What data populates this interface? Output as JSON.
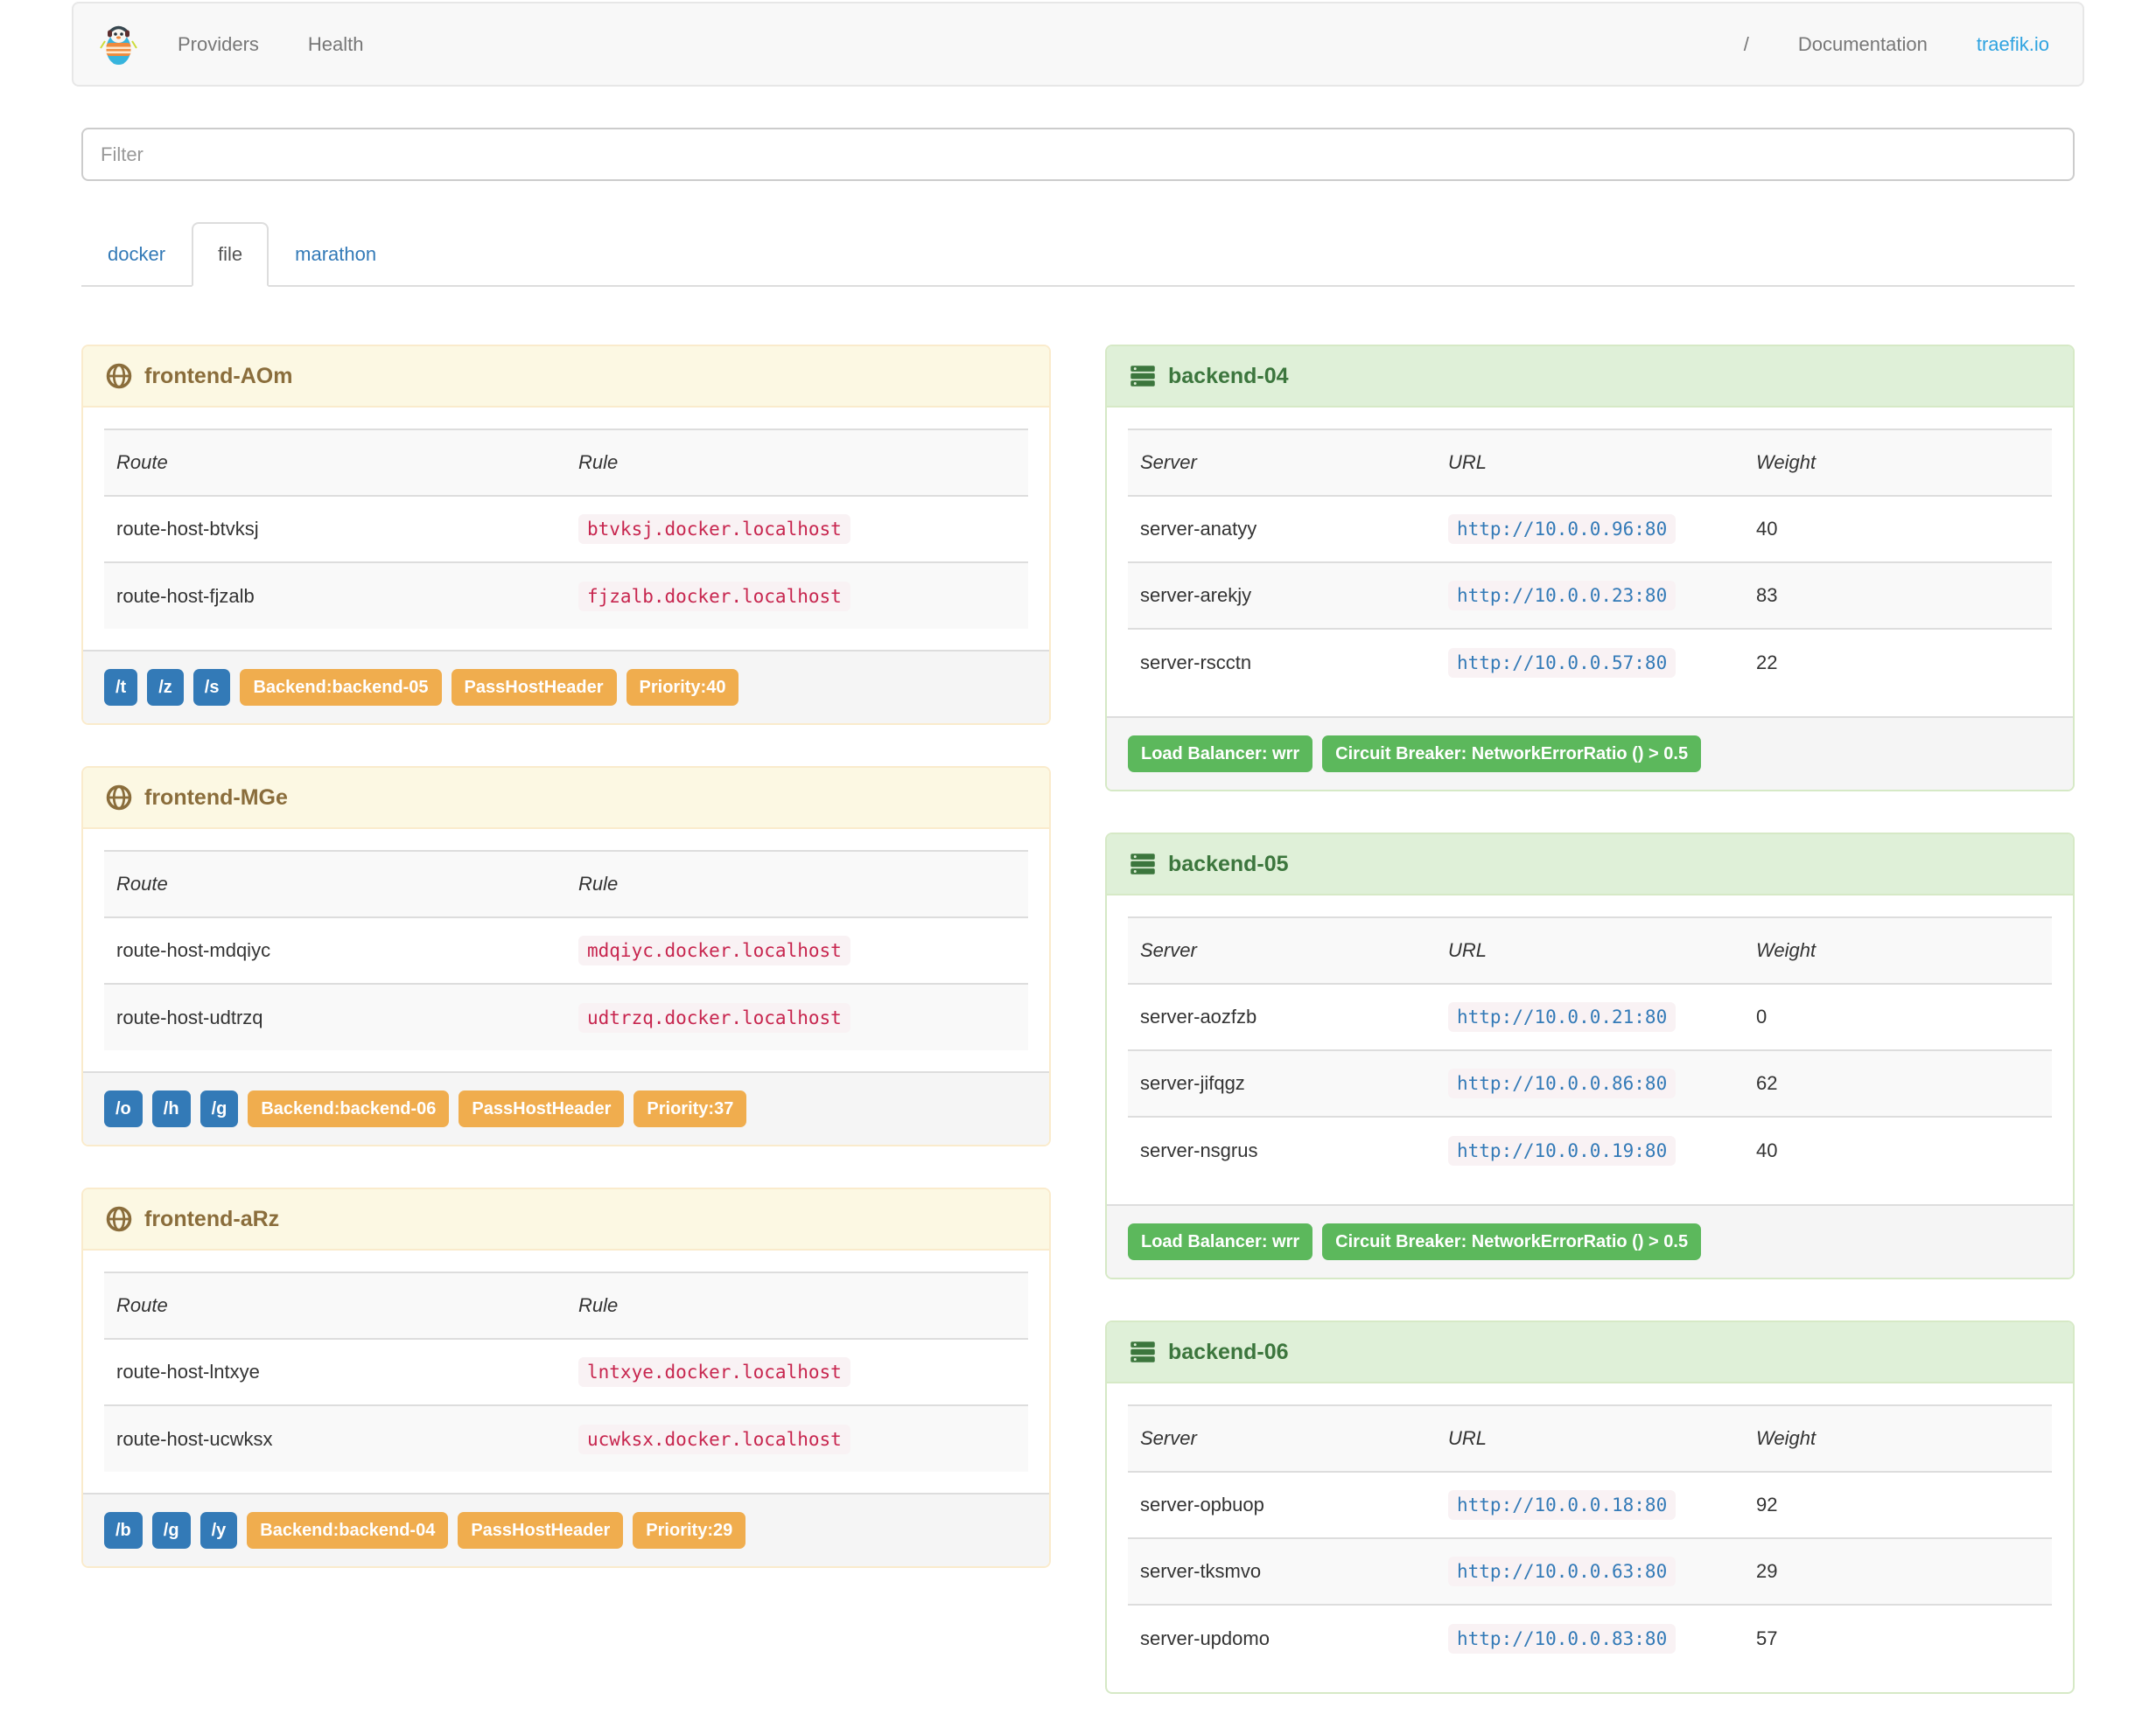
{
  "navbar": {
    "brand_icon": "traefik-logo",
    "items": [
      {
        "label": "Providers"
      },
      {
        "label": "Health"
      }
    ],
    "right_items": [
      {
        "label": "/"
      },
      {
        "label": "Documentation"
      },
      {
        "label": "traefik.io"
      }
    ]
  },
  "filter": {
    "placeholder": "Filter",
    "value": ""
  },
  "tabs": [
    {
      "label": "docker",
      "active": false
    },
    {
      "label": "file",
      "active": true
    },
    {
      "label": "marathon",
      "active": false
    }
  ],
  "frontends": [
    {
      "title": "frontend-AOm",
      "columns": [
        "Route",
        "Rule"
      ],
      "routes": [
        {
          "route": "route-host-btvksj",
          "rule": "btvksj.docker.localhost"
        },
        {
          "route": "route-host-fjzalb",
          "rule": "fjzalb.docker.localhost"
        }
      ],
      "entry_points": [
        "/t",
        "/z",
        "/s"
      ],
      "tags": [
        "Backend:backend-05",
        "PassHostHeader",
        "Priority:40"
      ]
    },
    {
      "title": "frontend-MGe",
      "columns": [
        "Route",
        "Rule"
      ],
      "routes": [
        {
          "route": "route-host-mdqiyc",
          "rule": "mdqiyc.docker.localhost"
        },
        {
          "route": "route-host-udtrzq",
          "rule": "udtrzq.docker.localhost"
        }
      ],
      "entry_points": [
        "/o",
        "/h",
        "/g"
      ],
      "tags": [
        "Backend:backend-06",
        "PassHostHeader",
        "Priority:37"
      ]
    },
    {
      "title": "frontend-aRz",
      "columns": [
        "Route",
        "Rule"
      ],
      "routes": [
        {
          "route": "route-host-lntxye",
          "rule": "lntxye.docker.localhost"
        },
        {
          "route": "route-host-ucwksx",
          "rule": "ucwksx.docker.localhost"
        }
      ],
      "entry_points": [
        "/b",
        "/g",
        "/y"
      ],
      "tags": [
        "Backend:backend-04",
        "PassHostHeader",
        "Priority:29"
      ]
    }
  ],
  "backends": [
    {
      "title": "backend-04",
      "columns": [
        "Server",
        "URL",
        "Weight"
      ],
      "servers": [
        {
          "server": "server-anatyy",
          "url": "http://10.0.0.96:80",
          "weight": "40"
        },
        {
          "server": "server-arekjy",
          "url": "http://10.0.0.23:80",
          "weight": "83"
        },
        {
          "server": "server-rscctn",
          "url": "http://10.0.0.57:80",
          "weight": "22"
        }
      ],
      "badges": [
        "Load Balancer: wrr",
        "Circuit Breaker: NetworkErrorRatio () > 0.5"
      ]
    },
    {
      "title": "backend-05",
      "columns": [
        "Server",
        "URL",
        "Weight"
      ],
      "servers": [
        {
          "server": "server-aozfzb",
          "url": "http://10.0.0.21:80",
          "weight": "0"
        },
        {
          "server": "server-jifqgz",
          "url": "http://10.0.0.86:80",
          "weight": "62"
        },
        {
          "server": "server-nsgrus",
          "url": "http://10.0.0.19:80",
          "weight": "40"
        }
      ],
      "badges": [
        "Load Balancer: wrr",
        "Circuit Breaker: NetworkErrorRatio () > 0.5"
      ]
    },
    {
      "title": "backend-06",
      "columns": [
        "Server",
        "URL",
        "Weight"
      ],
      "servers": [
        {
          "server": "server-opbuop",
          "url": "http://10.0.0.18:80",
          "weight": "92"
        },
        {
          "server": "server-tksmvo",
          "url": "http://10.0.0.63:80",
          "weight": "29"
        },
        {
          "server": "server-updomo",
          "url": "http://10.0.0.83:80",
          "weight": "57"
        }
      ],
      "badges": []
    }
  ],
  "colors": {
    "link_blue": "#337ab7",
    "site_link_blue": "#2fa3e0",
    "badge_blue": "#337ab7",
    "badge_orange": "#f0ad4e",
    "badge_green": "#5cb85c",
    "warning_bg": "#fcf8e3",
    "warning_border": "#faebcc",
    "warning_text": "#8a6d3b",
    "success_bg": "#dff0d8",
    "success_border": "#d6e9c6",
    "success_text": "#3c763d",
    "code_bg": "#f9f2f4",
    "code_text": "#c7254e",
    "navbar_bg": "#f8f8f8"
  }
}
